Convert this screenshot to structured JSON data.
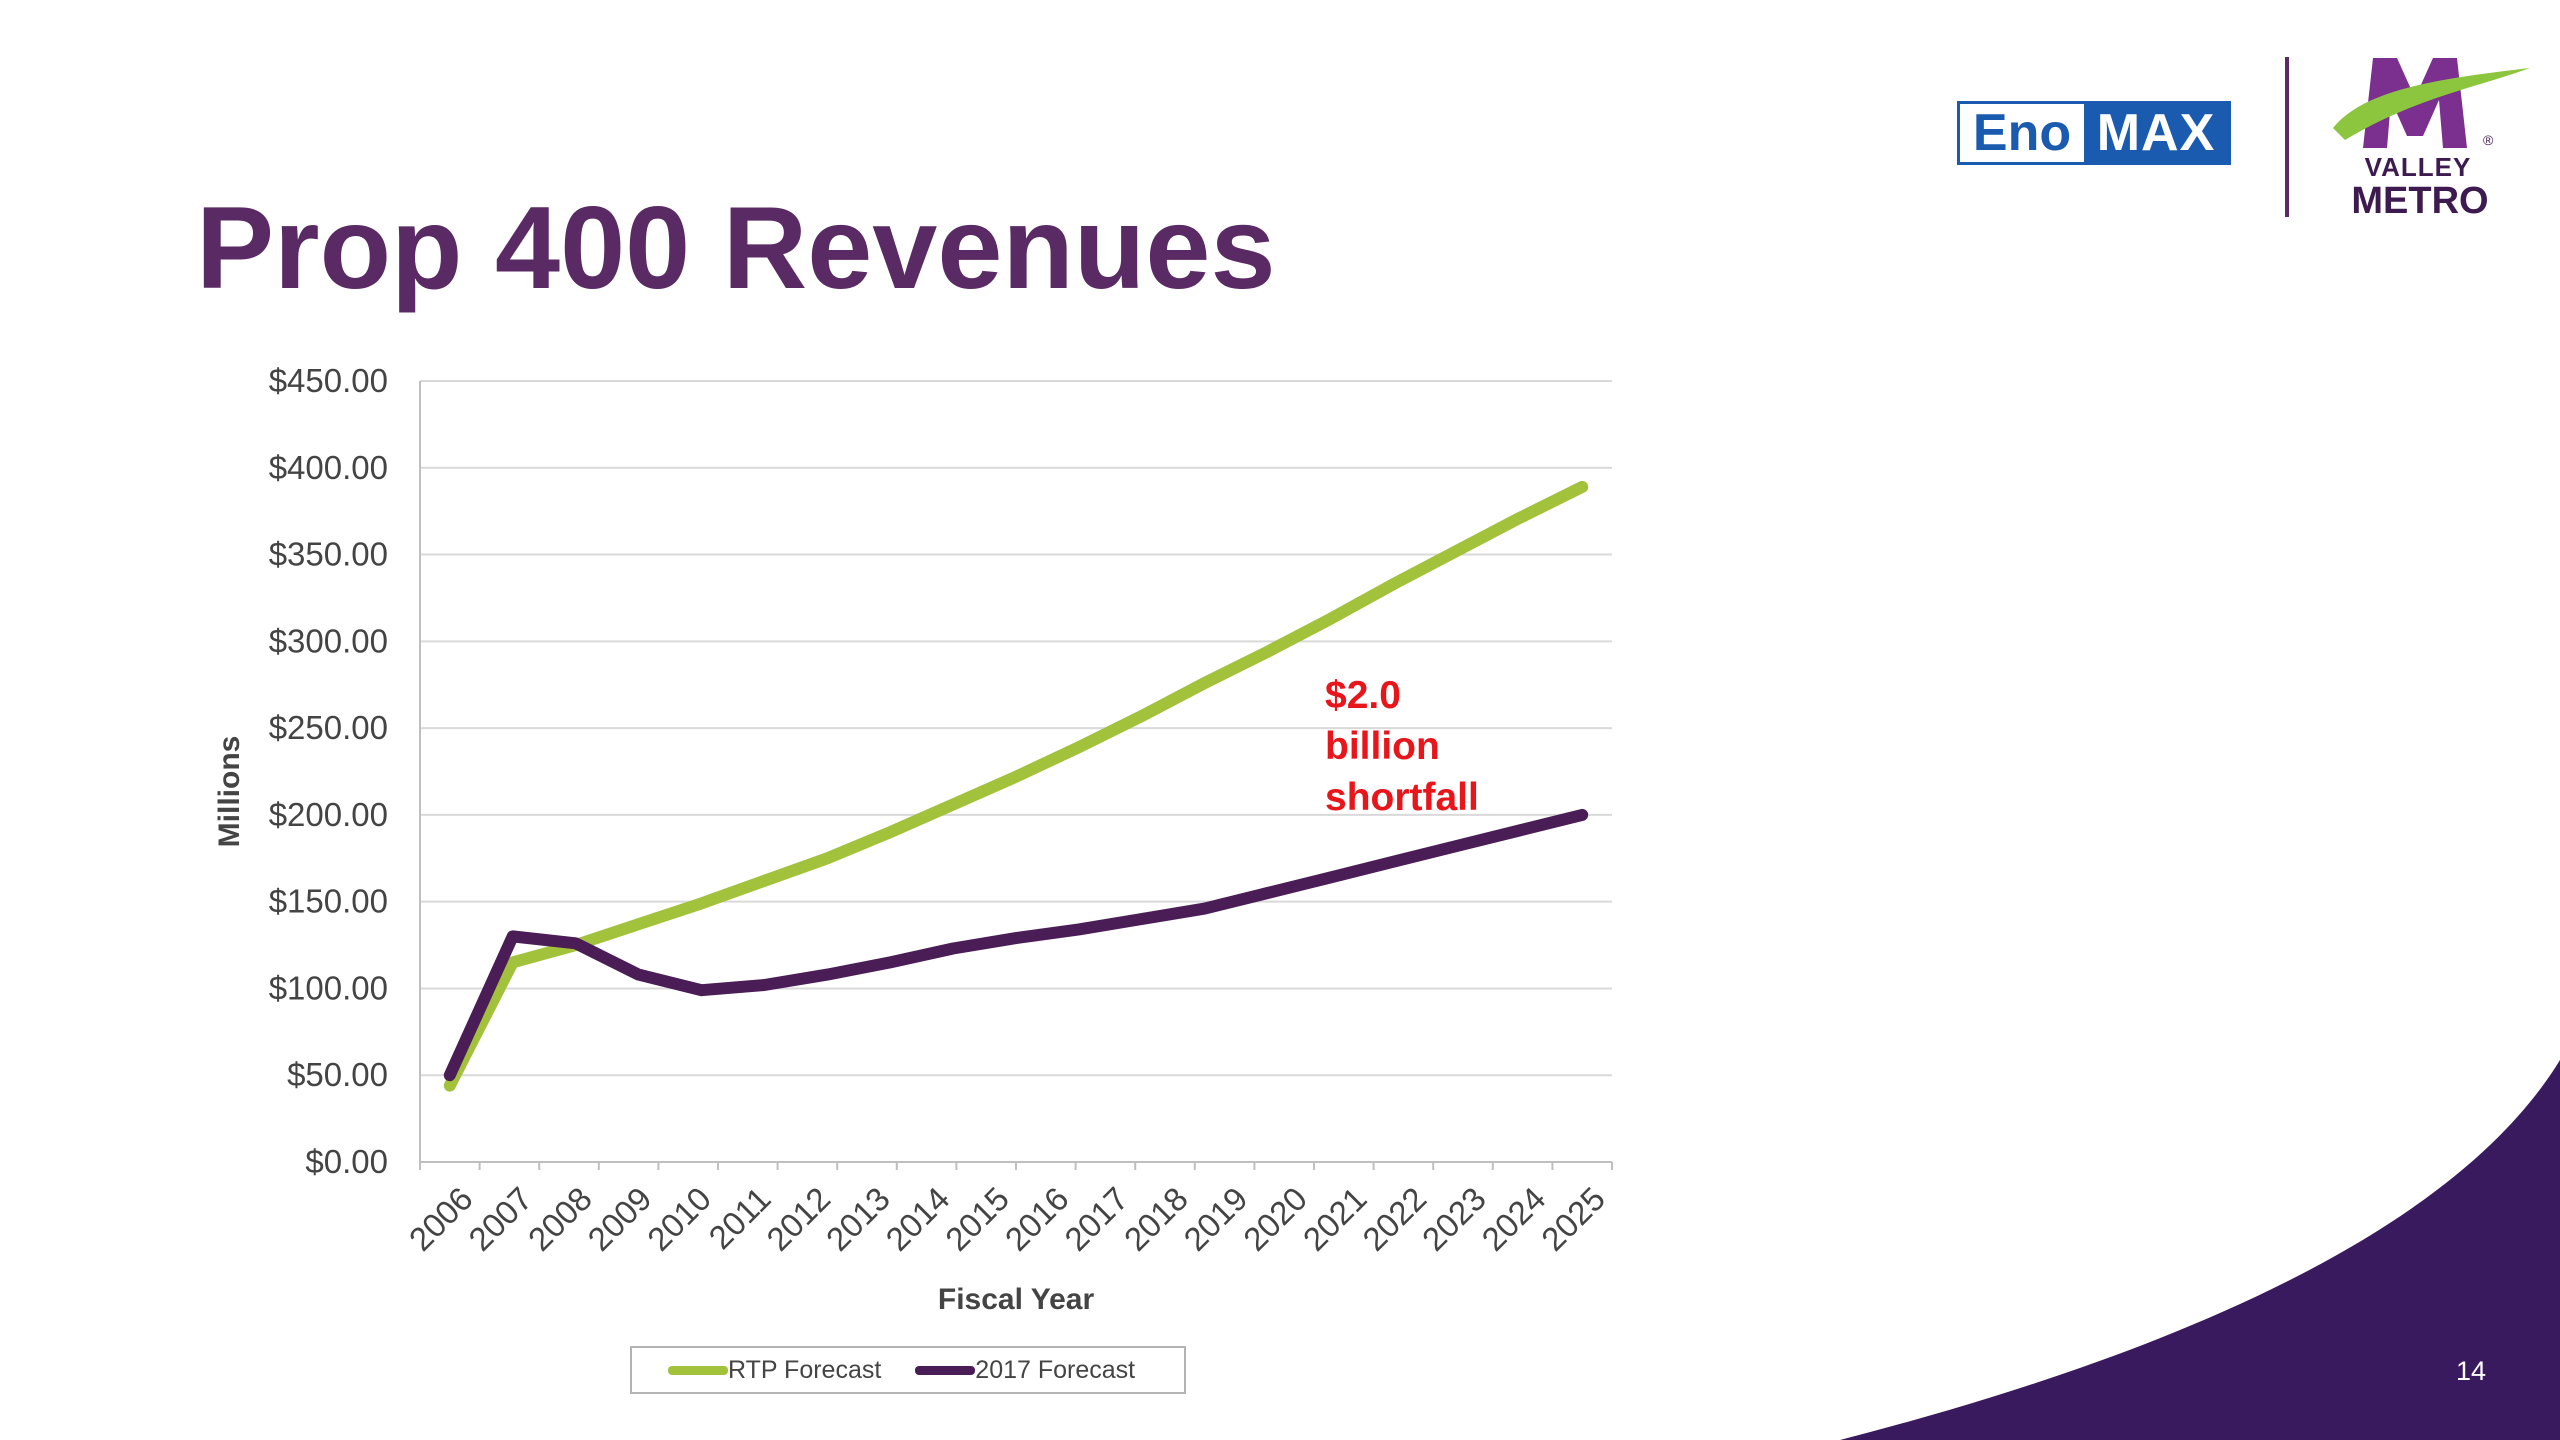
{
  "slide": {
    "title": "Prop 400 Revenues",
    "page_number": "14"
  },
  "logos": {
    "eno_left": "Eno",
    "eno_right": "MAX",
    "valley_metro_line1": "VALLEY",
    "valley_metro_line2": "METRO",
    "registered_mark": "®"
  },
  "colors": {
    "title": "#5a2a64",
    "rtp_series": "#a3c23c",
    "forecast_2017_series": "#4a1d56",
    "annotation": "#e8151b",
    "decor": "#3a1a5e"
  },
  "chart_data": {
    "type": "line",
    "xlabel": "Fiscal Year",
    "ylabel": "Millions",
    "x": [
      "2006",
      "2007",
      "2008",
      "2009",
      "2010",
      "2011",
      "2012",
      "2013",
      "2014",
      "2015",
      "2016",
      "2017",
      "2018",
      "2019",
      "2020",
      "2021",
      "2022",
      "2023",
      "2024",
      "2025"
    ],
    "ylim": [
      0,
      450
    ],
    "yticks": [
      "$0.00",
      "$50.00",
      "$100.00",
      "$150.00",
      "$200.00",
      "$250.00",
      "$300.00",
      "$350.00",
      "$400.00",
      "$450.00"
    ],
    "grid": true,
    "legend_position": "bottom",
    "series": [
      {
        "name": "RTP Forecast",
        "color": "#a3c23c",
        "values": [
          44,
          115,
          125,
          137,
          149,
          162,
          175,
          190,
          206,
          222,
          239,
          257,
          276,
          294,
          313,
          333,
          352,
          371,
          389,
          389
        ]
      },
      {
        "name": "2017 Forecast",
        "color": "#4a1d56",
        "values": [
          50,
          130,
          126,
          108,
          99,
          102,
          108,
          115,
          123,
          129,
          134,
          140,
          146,
          155,
          164,
          173,
          182,
          191,
          200,
          200
        ]
      }
    ],
    "annotation": {
      "lines": [
        "$2.0",
        "billion",
        "shortfall"
      ],
      "color": "#e8151b"
    }
  }
}
